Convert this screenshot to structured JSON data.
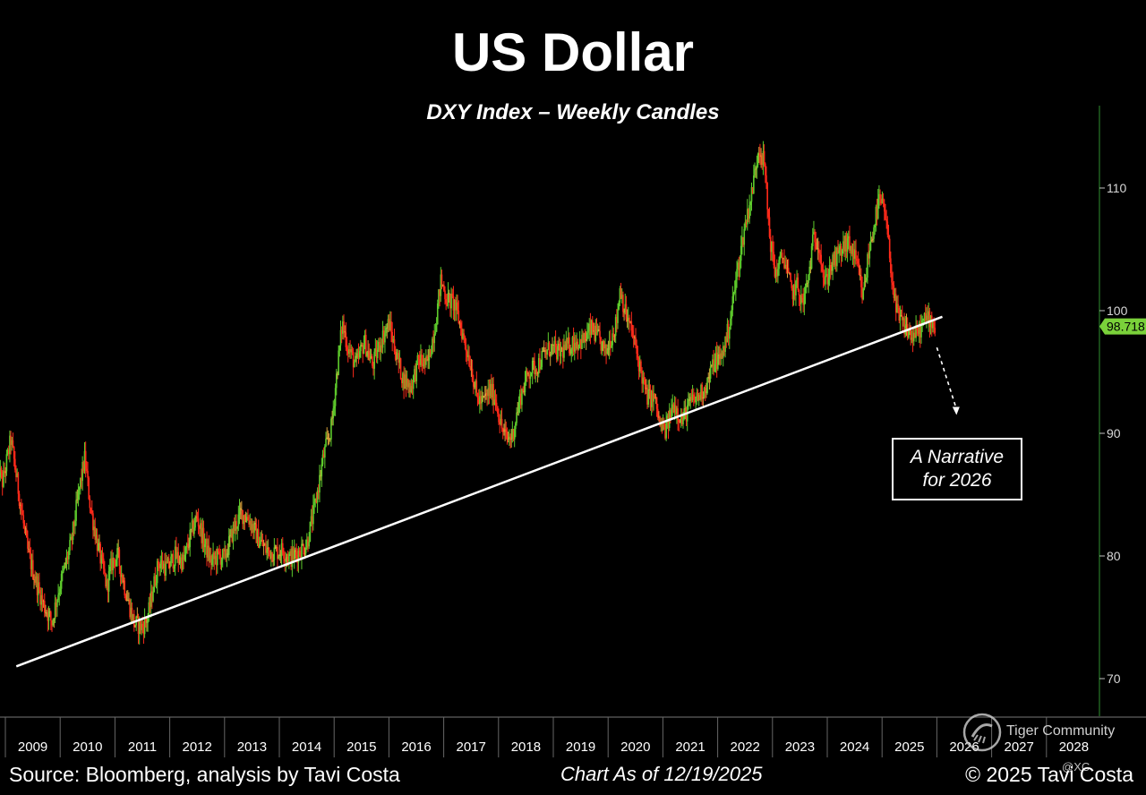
{
  "header": {
    "title": "US Dollar",
    "subtitle": "DXY Index – Weekly Candles"
  },
  "footer": {
    "source": "Source: Bloomberg, analysis by Tavi Costa",
    "chart_as_of": "Chart As of 12/19/2025",
    "copyright": "© 2025 Tavi Costa"
  },
  "annotation": {
    "line1": "A Narrative",
    "line2": "for 2026"
  },
  "watermark": {
    "text": "Tiger Community",
    "handle": "@XC"
  },
  "colors": {
    "background": "#000000",
    "up_candle": "#5ecb2c",
    "down_candle": "#ff2a1a",
    "neutral_candle": "#d9a23a",
    "trendline": "#ffffff",
    "axis": "#2f8f2f",
    "last_price_label": "#7ad13a"
  },
  "chart_data": {
    "type": "candlestick",
    "series_name": "DXY Index – Weekly Candles",
    "x_axis": {
      "tick_labels": [
        "2009",
        "2010",
        "2011",
        "2012",
        "2013",
        "2014",
        "2015",
        "2016",
        "2017",
        "2018",
        "2019",
        "2020",
        "2021",
        "2022",
        "2023",
        "2024",
        "2025",
        "2026",
        "2027",
        "2028"
      ],
      "range": [
        2008.85,
        2029.0
      ]
    },
    "y_axis": {
      "tick_labels": [
        "70",
        "80",
        "90",
        "100",
        "110"
      ],
      "range": [
        67.5,
        117.5
      ],
      "position": "right"
    },
    "last_price": 98.718,
    "last_price_label": "98.718",
    "trendline": {
      "points": [
        [
          2009.2,
          71.0
        ],
        [
          2026.1,
          99.5
        ]
      ]
    },
    "arrow": {
      "from": [
        2026.0,
        97.0
      ],
      "to": [
        2026.35,
        91.5
      ]
    },
    "anchors": [
      [
        2008.85,
        87.5
      ],
      [
        2008.95,
        86.0
      ],
      [
        2009.1,
        89.5
      ],
      [
        2009.25,
        85.0
      ],
      [
        2009.4,
        80.5
      ],
      [
        2009.55,
        78.0
      ],
      [
        2009.7,
        76.0
      ],
      [
        2009.85,
        74.6
      ],
      [
        2009.95,
        76.8
      ],
      [
        2010.05,
        78.5
      ],
      [
        2010.2,
        81.0
      ],
      [
        2010.35,
        85.5
      ],
      [
        2010.45,
        88.0
      ],
      [
        2010.55,
        84.0
      ],
      [
        2010.7,
        80.5
      ],
      [
        2010.85,
        77.5
      ],
      [
        2010.95,
        79.5
      ],
      [
        2011.05,
        80.0
      ],
      [
        2011.2,
        77.0
      ],
      [
        2011.35,
        74.5
      ],
      [
        2011.5,
        74.2
      ],
      [
        2011.6,
        75.0
      ],
      [
        2011.7,
        77.5
      ],
      [
        2011.8,
        79.5
      ],
      [
        2011.95,
        79.0
      ],
      [
        2012.1,
        80.0
      ],
      [
        2012.25,
        79.5
      ],
      [
        2012.4,
        82.0
      ],
      [
        2012.5,
        83.2
      ],
      [
        2012.6,
        81.5
      ],
      [
        2012.75,
        79.5
      ],
      [
        2012.9,
        80.0
      ],
      [
        2013.0,
        79.8
      ],
      [
        2013.15,
        82.0
      ],
      [
        2013.3,
        83.5
      ],
      [
        2013.45,
        83.0
      ],
      [
        2013.6,
        81.5
      ],
      [
        2013.75,
        80.5
      ],
      [
        2013.9,
        80.3
      ],
      [
        2014.05,
        80.5
      ],
      [
        2014.2,
        79.8
      ],
      [
        2014.35,
        80.3
      ],
      [
        2014.5,
        81.0
      ],
      [
        2014.65,
        84.0
      ],
      [
        2014.8,
        88.0
      ],
      [
        2014.95,
        90.5
      ],
      [
        2015.05,
        95.0
      ],
      [
        2015.15,
        99.0
      ],
      [
        2015.25,
        97.0
      ],
      [
        2015.4,
        95.5
      ],
      [
        2015.55,
        97.5
      ],
      [
        2015.7,
        95.5
      ],
      [
        2015.85,
        97.5
      ],
      [
        2016.0,
        99.0
      ],
      [
        2016.1,
        97.0
      ],
      [
        2016.25,
        94.5
      ],
      [
        2016.4,
        93.8
      ],
      [
        2016.55,
        96.0
      ],
      [
        2016.7,
        95.5
      ],
      [
        2016.85,
        99.0
      ],
      [
        2016.95,
        102.5
      ],
      [
        2017.05,
        101.0
      ],
      [
        2017.2,
        100.5
      ],
      [
        2017.35,
        98.0
      ],
      [
        2017.5,
        95.5
      ],
      [
        2017.6,
        93.0
      ],
      [
        2017.7,
        92.5
      ],
      [
        2017.85,
        93.5
      ],
      [
        2017.95,
        92.8
      ],
      [
        2018.05,
        90.5
      ],
      [
        2018.15,
        89.5
      ],
      [
        2018.25,
        89.8
      ],
      [
        2018.4,
        93.0
      ],
      [
        2018.55,
        95.0
      ],
      [
        2018.7,
        95.5
      ],
      [
        2018.85,
        96.5
      ],
      [
        2018.95,
        97.0
      ],
      [
        2019.1,
        96.5
      ],
      [
        2019.25,
        97.0
      ],
      [
        2019.4,
        97.5
      ],
      [
        2019.55,
        97.5
      ],
      [
        2019.7,
        98.5
      ],
      [
        2019.85,
        97.5
      ],
      [
        2019.95,
        96.5
      ],
      [
        2020.05,
        97.8
      ],
      [
        2020.15,
        99.0
      ],
      [
        2020.22,
        102.0
      ],
      [
        2020.3,
        100.0
      ],
      [
        2020.45,
        98.0
      ],
      [
        2020.55,
        96.0
      ],
      [
        2020.7,
        93.0
      ],
      [
        2020.85,
        92.8
      ],
      [
        2020.95,
        90.5
      ],
      [
        2021.05,
        90.2
      ],
      [
        2021.2,
        92.5
      ],
      [
        2021.35,
        91.0
      ],
      [
        2021.5,
        92.5
      ],
      [
        2021.65,
        93.0
      ],
      [
        2021.8,
        94.0
      ],
      [
        2021.95,
        96.0
      ],
      [
        2022.05,
        96.0
      ],
      [
        2022.2,
        98.5
      ],
      [
        2022.35,
        103.0
      ],
      [
        2022.5,
        107.0
      ],
      [
        2022.62,
        109.5
      ],
      [
        2022.75,
        113.5
      ],
      [
        2022.85,
        112.0
      ],
      [
        2022.95,
        106.0
      ],
      [
        2023.05,
        103.0
      ],
      [
        2023.2,
        104.5
      ],
      [
        2023.35,
        101.5
      ],
      [
        2023.45,
        102.0
      ],
      [
        2023.55,
        100.5
      ],
      [
        2023.65,
        102.5
      ],
      [
        2023.75,
        106.0
      ],
      [
        2023.85,
        105.5
      ],
      [
        2023.95,
        102.0
      ],
      [
        2024.05,
        103.5
      ],
      [
        2024.2,
        104.5
      ],
      [
        2024.35,
        105.5
      ],
      [
        2024.45,
        105.0
      ],
      [
        2024.55,
        103.5
      ],
      [
        2024.65,
        101.0
      ],
      [
        2024.75,
        104.5
      ],
      [
        2024.85,
        107.0
      ],
      [
        2024.95,
        109.0
      ],
      [
        2025.05,
        108.0
      ],
      [
        2025.15,
        104.0
      ],
      [
        2025.25,
        100.0
      ],
      [
        2025.35,
        99.0
      ],
      [
        2025.45,
        98.5
      ],
      [
        2025.55,
        97.8
      ],
      [
        2025.65,
        98.2
      ],
      [
        2025.75,
        99.0
      ],
      [
        2025.85,
        99.5
      ],
      [
        2025.97,
        98.7
      ]
    ]
  }
}
